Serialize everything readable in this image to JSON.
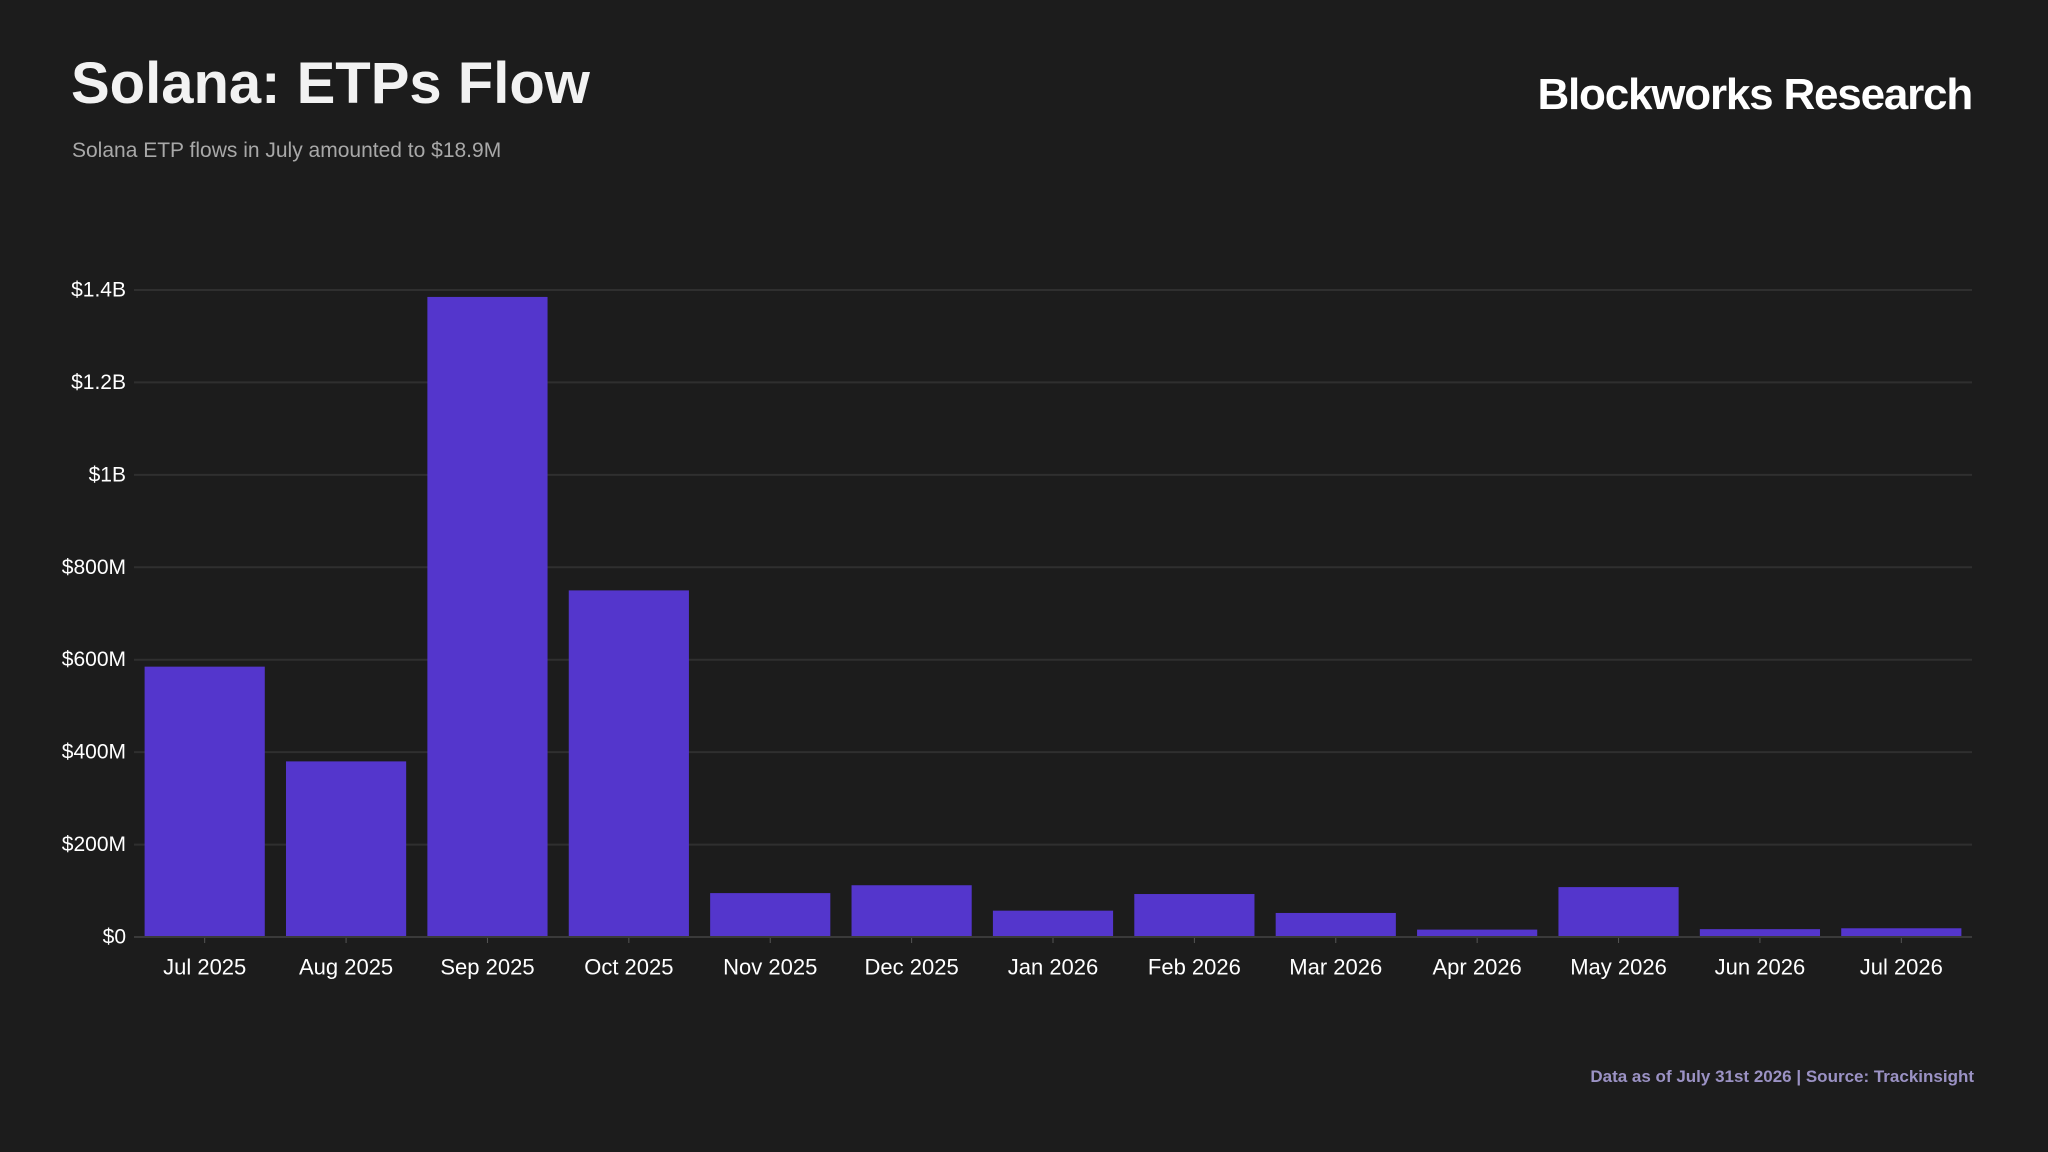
{
  "header": {
    "title": "Solana: ETPs Flow",
    "subtitle": "Solana ETP flows in July amounted to $18.9M",
    "brand": "Blockworks Research"
  },
  "footer": {
    "note": "Data as of July 31st 2026 | Source: Trackinsight"
  },
  "colors": {
    "background": "#1c1c1c",
    "bar": "#5436cc",
    "grid": "#2f2f2f",
    "text": "#ffffff"
  },
  "chart_data": {
    "type": "bar",
    "title": "Solana: ETPs Flow",
    "subtitle": "Solana ETP flows in July amounted to $18.9M",
    "xlabel": "",
    "ylabel": "",
    "categories": [
      "Jul 2025",
      "Aug 2025",
      "Sep 2025",
      "Oct 2025",
      "Nov 2025",
      "Dec 2025",
      "Jan 2026",
      "Feb 2026",
      "Mar 2026",
      "Apr 2026",
      "May 2026",
      "Jun 2026",
      "Jul 2026"
    ],
    "values": [
      585000000,
      380000000,
      1385000000,
      750000000,
      95000000,
      112000000,
      57000000,
      93000000,
      52000000,
      16000000,
      108000000,
      17000000,
      18900000
    ],
    "ylim": [
      0,
      1400000000
    ],
    "yticks": [
      0,
      200000000,
      400000000,
      600000000,
      800000000,
      1000000000,
      1200000000,
      1400000000
    ],
    "ytick_labels": [
      "$0",
      "$200M",
      "$400M",
      "$600M",
      "$800M",
      "$1B",
      "$1.2B",
      "$1.4B"
    ],
    "grid": true,
    "legend": "none"
  }
}
